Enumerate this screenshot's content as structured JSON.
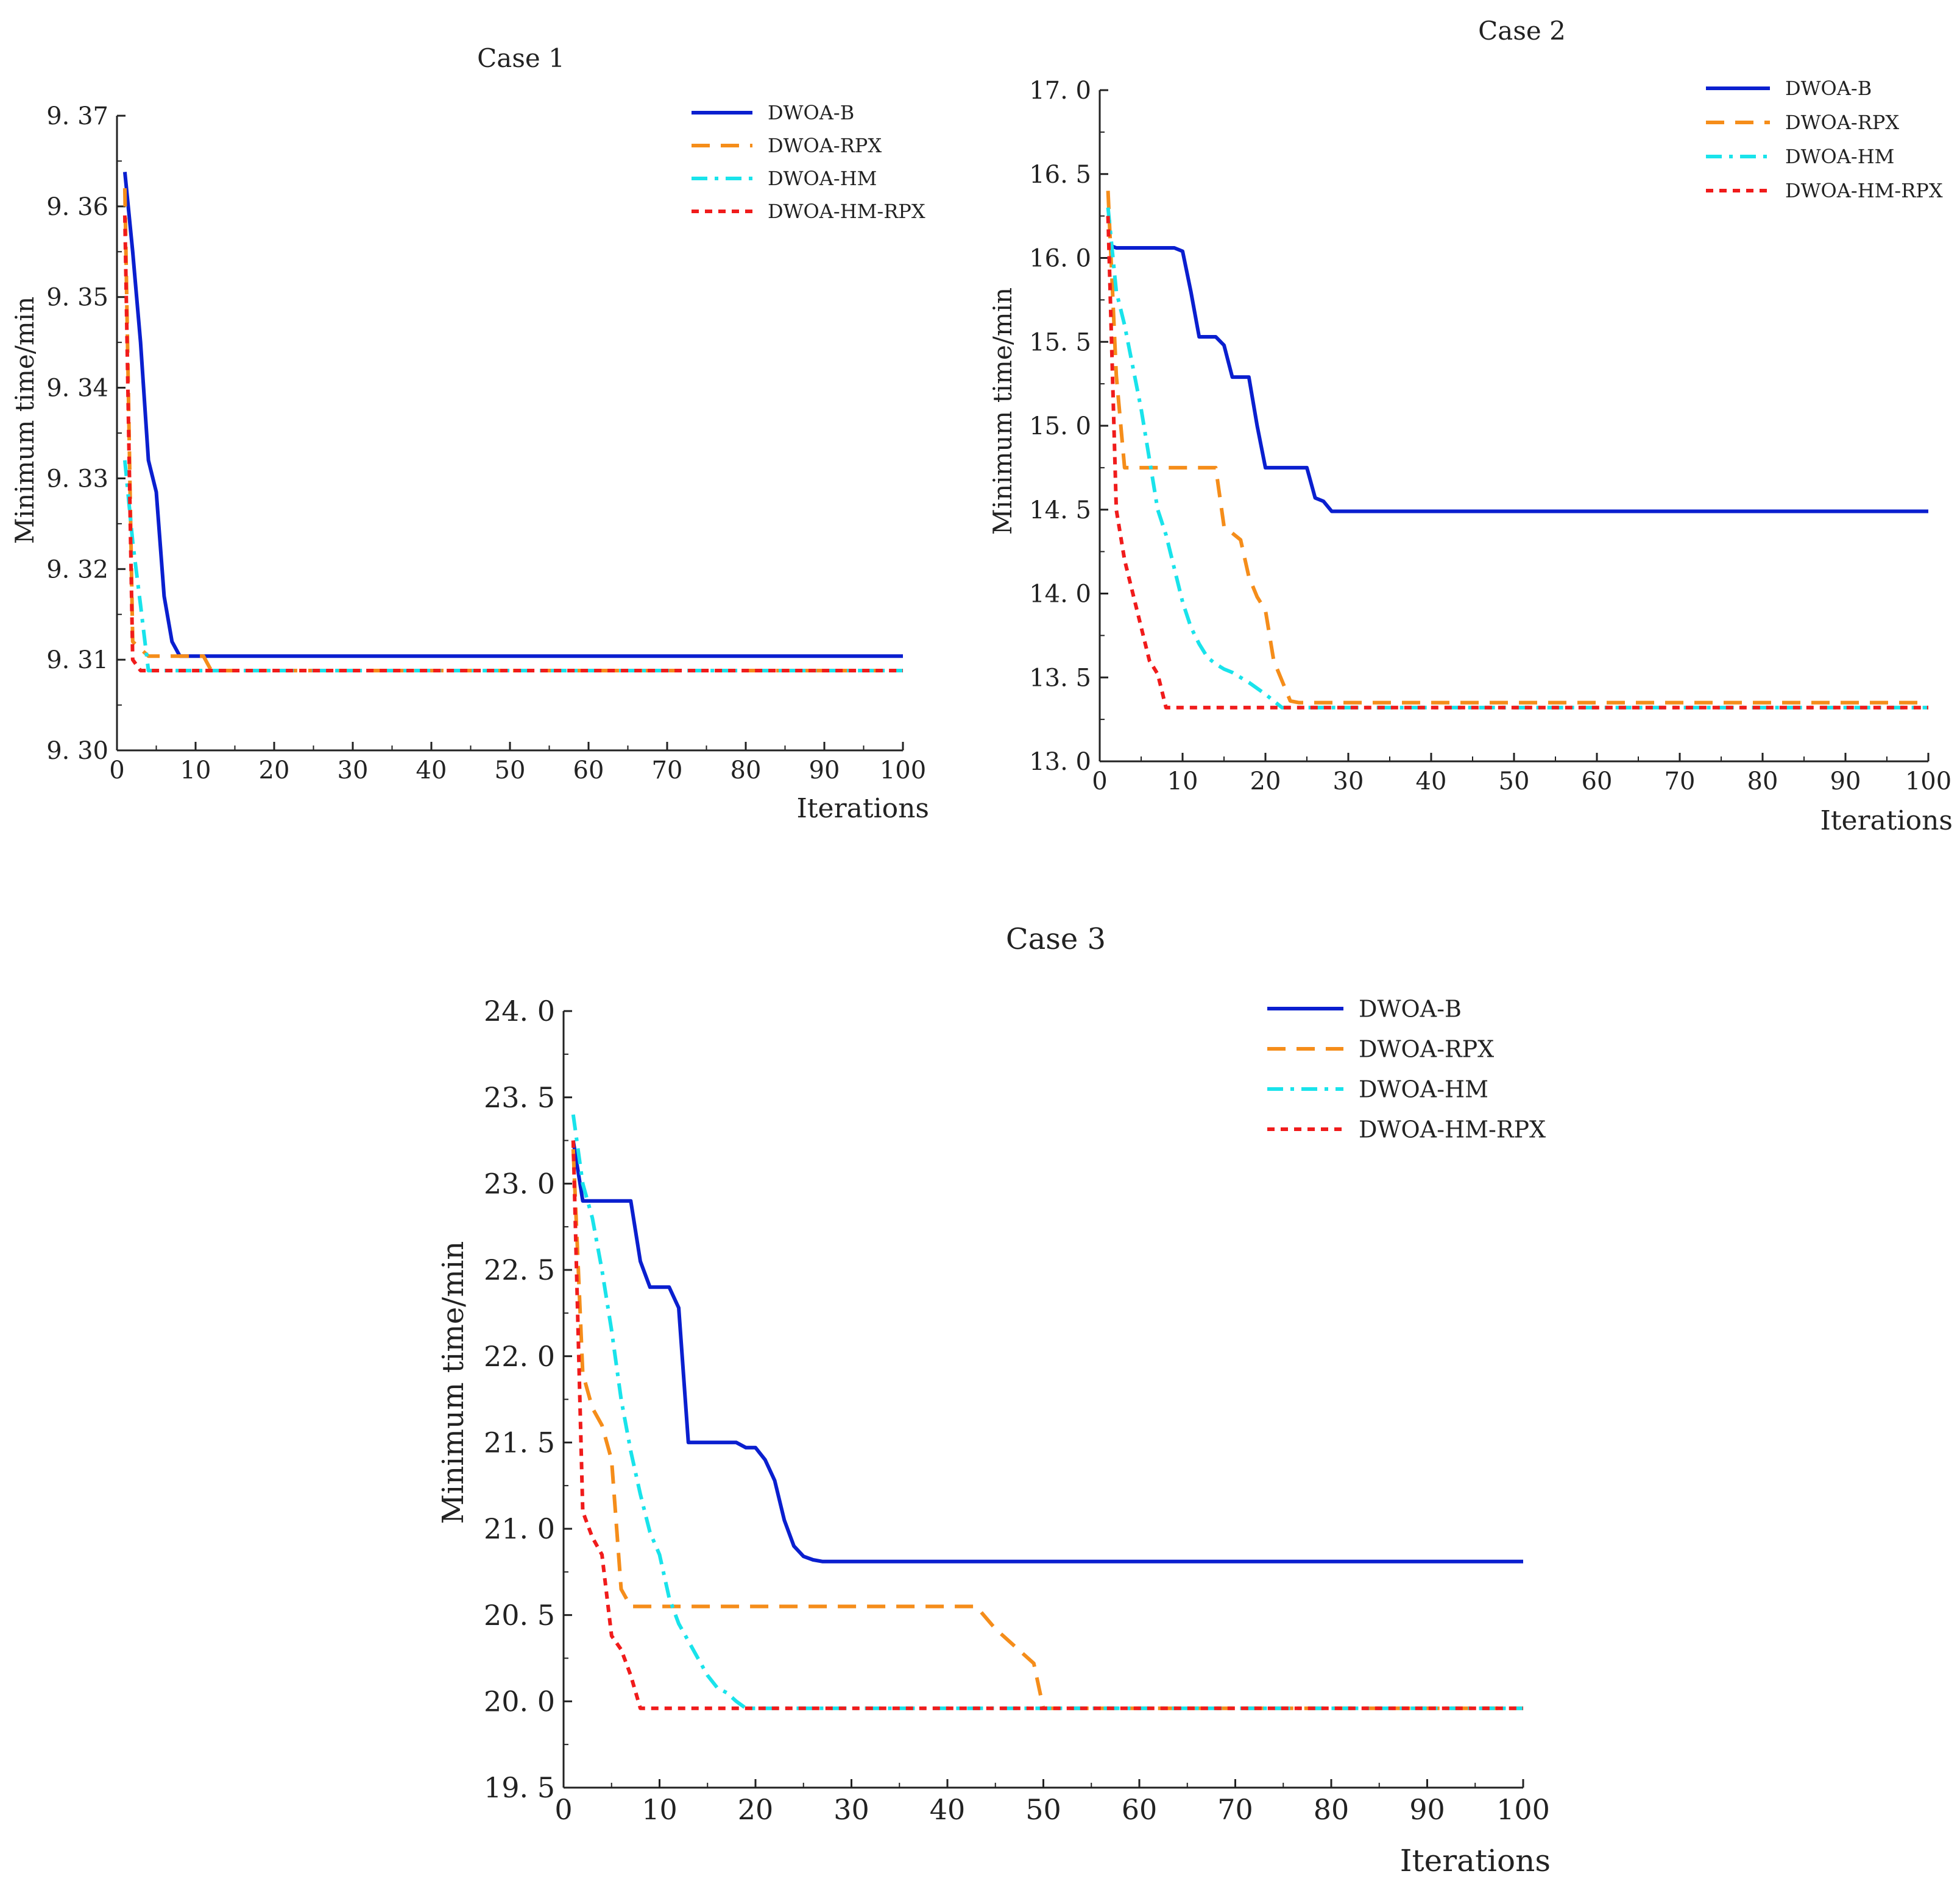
{
  "chart_data": [
    {
      "type": "line",
      "title": "Case 1",
      "xlabel": "Iterations",
      "ylabel": "Minimum time/min",
      "xlim": [
        0,
        100
      ],
      "ylim": [
        9.3,
        9.37
      ],
      "xticks": [
        0,
        10,
        20,
        30,
        40,
        50,
        60,
        70,
        80,
        90,
        100
      ],
      "xtick_labels": [
        "0",
        "10",
        "20",
        "30",
        "40",
        "50",
        "60",
        "70",
        "80",
        "90",
        "100"
      ],
      "yticks": [
        9.3,
        9.31,
        9.32,
        9.33,
        9.34,
        9.35,
        9.36,
        9.37
      ],
      "ytick_labels": [
        "9. 30",
        "9. 31",
        "9. 32",
        "9. 33",
        "9. 34",
        "9. 35",
        "9. 36",
        "9. 37"
      ],
      "legend_position": "top-right",
      "series": [
        {
          "name": "DWOA-B",
          "color": "#0a1fcf",
          "dash": "solid",
          "points": [
            [
              1,
              9.3638
            ],
            [
              2,
              9.355
            ],
            [
              3,
              9.345
            ],
            [
              4,
              9.332
            ],
            [
              5,
              9.3285
            ],
            [
              6,
              9.317
            ],
            [
              7,
              9.312
            ],
            [
              8,
              9.3104
            ],
            [
              100,
              9.3104
            ]
          ]
        },
        {
          "name": "DWOA-RPX",
          "color": "#f58d1a",
          "dash": "dashed",
          "points": [
            [
              1,
              9.362
            ],
            [
              2,
              9.312
            ],
            [
              4,
              9.3104
            ],
            [
              11,
              9.3104
            ],
            [
              12,
              9.3088
            ],
            [
              100,
              9.3088
            ]
          ]
        },
        {
          "name": "DWOA-HM",
          "color": "#19e3eb",
          "dash": "dashdot",
          "points": [
            [
              1,
              9.332
            ],
            [
              2,
              9.323
            ],
            [
              3,
              9.316
            ],
            [
              4,
              9.3088
            ],
            [
              100,
              9.3088
            ]
          ]
        },
        {
          "name": "DWOA-HM-RPX",
          "color": "#f01b1b",
          "dash": "dotted",
          "points": [
            [
              1,
              9.359
            ],
            [
              2,
              9.31
            ],
            [
              3,
              9.3088
            ],
            [
              100,
              9.3088
            ]
          ]
        }
      ]
    },
    {
      "type": "line",
      "title": "Case 2",
      "xlabel": "Iterations",
      "ylabel": "Minimum time/min",
      "xlim": [
        0,
        100
      ],
      "ylim": [
        13.0,
        17.0
      ],
      "xticks": [
        0,
        10,
        20,
        30,
        40,
        50,
        60,
        70,
        80,
        90,
        100
      ],
      "xtick_labels": [
        "0",
        "10",
        "20",
        "30",
        "40",
        "50",
        "60",
        "70",
        "80",
        "90",
        "100"
      ],
      "yticks": [
        13.0,
        13.5,
        14.0,
        14.5,
        15.0,
        15.5,
        16.0,
        16.5,
        17.0
      ],
      "ytick_labels": [
        "13. 0",
        "13. 5",
        "14. 0",
        "14. 5",
        "15. 0",
        "15. 5",
        "16. 0",
        "16. 5",
        "17. 0"
      ],
      "legend_position": "top-right",
      "series": [
        {
          "name": "DWOA-B",
          "color": "#0a1fcf",
          "dash": "solid",
          "points": [
            [
              1,
              16.08
            ],
            [
              2,
              16.06
            ],
            [
              9,
              16.06
            ],
            [
              10,
              16.04
            ],
            [
              11,
              15.8
            ],
            [
              12,
              15.53
            ],
            [
              14,
              15.53
            ],
            [
              15,
              15.48
            ],
            [
              16,
              15.29
            ],
            [
              18,
              15.29
            ],
            [
              19,
              15.0
            ],
            [
              20,
              14.75
            ],
            [
              25,
              14.75
            ],
            [
              26,
              14.57
            ],
            [
              27,
              14.55
            ],
            [
              28,
              14.49
            ],
            [
              100,
              14.49
            ]
          ]
        },
        {
          "name": "DWOA-RPX",
          "color": "#f58d1a",
          "dash": "dashed",
          "points": [
            [
              1,
              16.4
            ],
            [
              2,
              15.3
            ],
            [
              3,
              14.75
            ],
            [
              14,
              14.75
            ],
            [
              15,
              14.4
            ],
            [
              17,
              14.32
            ],
            [
              18,
              14.1
            ],
            [
              19,
              13.98
            ],
            [
              20,
              13.9
            ],
            [
              21,
              13.6
            ],
            [
              23,
              13.36
            ],
            [
              24,
              13.35
            ],
            [
              100,
              13.35
            ]
          ]
        },
        {
          "name": "DWOA-HM",
          "color": "#19e3eb",
          "dash": "dashdot",
          "points": [
            [
              1,
              16.3
            ],
            [
              2,
              15.8
            ],
            [
              3,
              15.6
            ],
            [
              4,
              15.35
            ],
            [
              5,
              15.1
            ],
            [
              6,
              14.8
            ],
            [
              7,
              14.5
            ],
            [
              8,
              14.35
            ],
            [
              9,
              14.15
            ],
            [
              10,
              13.95
            ],
            [
              11,
              13.8
            ],
            [
              12,
              13.7
            ],
            [
              13,
              13.62
            ],
            [
              14,
              13.58
            ],
            [
              15,
              13.55
            ],
            [
              16,
              13.53
            ],
            [
              18,
              13.47
            ],
            [
              20,
              13.4
            ],
            [
              22,
              13.32
            ],
            [
              100,
              13.32
            ]
          ]
        },
        {
          "name": "DWOA-HM-RPX",
          "color": "#f01b1b",
          "dash": "dotted",
          "points": [
            [
              1,
              16.25
            ],
            [
              2,
              14.5
            ],
            [
              3,
              14.2
            ],
            [
              4,
              14.0
            ],
            [
              5,
              13.8
            ],
            [
              6,
              13.6
            ],
            [
              7,
              13.52
            ],
            [
              8,
              13.32
            ],
            [
              100,
              13.32
            ]
          ]
        }
      ]
    },
    {
      "type": "line",
      "title": "Case 3",
      "xlabel": "Iterations",
      "ylabel": "Minimum time/min",
      "xlim": [
        0,
        100
      ],
      "ylim": [
        19.5,
        24.0
      ],
      "xticks": [
        0,
        10,
        20,
        30,
        40,
        50,
        60,
        70,
        80,
        90,
        100
      ],
      "xtick_labels": [
        "0",
        "10",
        "20",
        "30",
        "40",
        "50",
        "60",
        "70",
        "80",
        "90",
        "100"
      ],
      "yticks": [
        19.5,
        20.0,
        20.5,
        21.0,
        21.5,
        22.0,
        22.5,
        23.0,
        23.5,
        24.0
      ],
      "ytick_labels": [
        "19. 5",
        "20. 0",
        "20. 5",
        "21. 0",
        "21. 5",
        "22. 0",
        "22. 5",
        "23. 0",
        "23. 5",
        "24. 0"
      ],
      "legend_position": "top-right",
      "series": [
        {
          "name": "DWOA-B",
          "color": "#0a1fcf",
          "dash": "solid",
          "points": [
            [
              1,
              23.25
            ],
            [
              2,
              22.9
            ],
            [
              7,
              22.9
            ],
            [
              8,
              22.55
            ],
            [
              9,
              22.4
            ],
            [
              11,
              22.4
            ],
            [
              12,
              22.28
            ],
            [
              13,
              21.5
            ],
            [
              18,
              21.5
            ],
            [
              19,
              21.47
            ],
            [
              20,
              21.47
            ],
            [
              21,
              21.4
            ],
            [
              22,
              21.28
            ],
            [
              23,
              21.05
            ],
            [
              24,
              20.9
            ],
            [
              25,
              20.84
            ],
            [
              26,
              20.82
            ],
            [
              27,
              20.81
            ],
            [
              100,
              20.81
            ]
          ]
        },
        {
          "name": "DWOA-RPX",
          "color": "#f58d1a",
          "dash": "dashed",
          "points": [
            [
              1,
              23.2
            ],
            [
              2,
              21.9
            ],
            [
              3,
              21.7
            ],
            [
              4,
              21.6
            ],
            [
              5,
              21.4
            ],
            [
              6,
              20.65
            ],
            [
              7,
              20.55
            ],
            [
              43,
              20.55
            ],
            [
              45,
              20.42
            ],
            [
              47,
              20.32
            ],
            [
              48,
              20.27
            ],
            [
              49,
              20.22
            ],
            [
              50,
              19.96
            ],
            [
              100,
              19.96
            ]
          ]
        },
        {
          "name": "DWOA-HM",
          "color": "#19e3eb",
          "dash": "dashdot",
          "points": [
            [
              1,
              23.4
            ],
            [
              2,
              23.0
            ],
            [
              3,
              22.8
            ],
            [
              4,
              22.5
            ],
            [
              5,
              22.15
            ],
            [
              6,
              21.75
            ],
            [
              7,
              21.45
            ],
            [
              8,
              21.2
            ],
            [
              9,
              20.98
            ],
            [
              10,
              20.85
            ],
            [
              11,
              20.6
            ],
            [
              12,
              20.45
            ],
            [
              13,
              20.35
            ],
            [
              14,
              20.25
            ],
            [
              15,
              20.15
            ],
            [
              16,
              20.08
            ],
            [
              17,
              20.05
            ],
            [
              18,
              20.0
            ],
            [
              19,
              19.96
            ],
            [
              100,
              19.96
            ]
          ]
        },
        {
          "name": "DWOA-HM-RPX",
          "color": "#f01b1b",
          "dash": "dotted",
          "points": [
            [
              1,
              23.25
            ],
            [
              2,
              21.1
            ],
            [
              3,
              20.95
            ],
            [
              4,
              20.85
            ],
            [
              5,
              20.38
            ],
            [
              6,
              20.3
            ],
            [
              7,
              20.15
            ],
            [
              8,
              19.96
            ],
            [
              100,
              19.96
            ]
          ]
        }
      ]
    }
  ]
}
